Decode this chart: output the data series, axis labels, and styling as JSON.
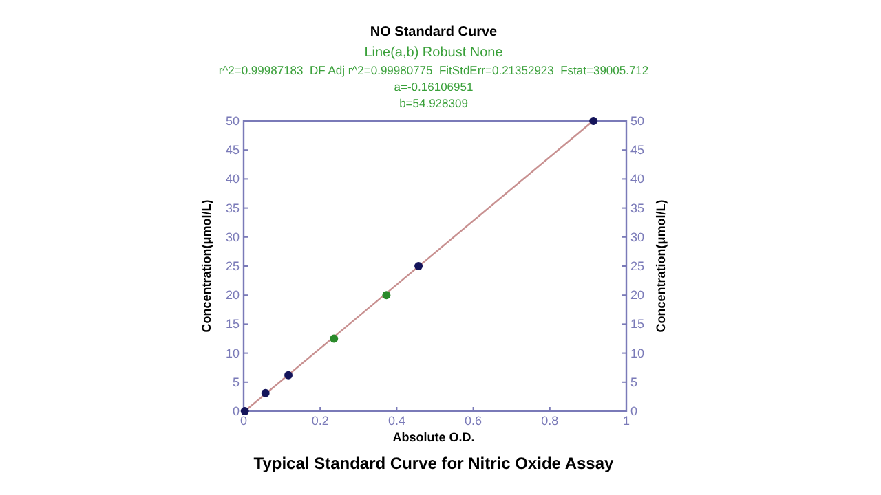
{
  "chart_data": {
    "type": "scatter",
    "title": "NO Standard Curve",
    "subtitle": "Line(a,b) Robust None",
    "xlabel": "Absolute O.D.",
    "ylabel": "Concentration(μmol/L)",
    "y2label": "Concentration(μmol/L)",
    "annotations": [
      "r^2=0.99987183  DF Adj r^2=0.99980775  FitStdErr=0.21352923  Fstat=39005.712",
      "a=-0.16106951",
      "b=54.928309",
      "Typical Standard Curve for Nitric Oxide Assay"
    ],
    "xlim": [
      0,
      1
    ],
    "xticks": [
      0,
      0.2,
      0.4,
      0.6,
      0.8,
      1
    ],
    "ylim": [
      0,
      50
    ],
    "yticks": [
      0,
      5,
      10,
      15,
      20,
      25,
      30,
      35,
      40,
      45,
      50
    ],
    "y2lim": [
      0,
      50
    ],
    "y2ticks": [
      0,
      5,
      10,
      15,
      20,
      25,
      30,
      35,
      40,
      45,
      50
    ],
    "marker": "circle",
    "series": [
      {
        "type": "line",
        "marker": "none",
        "color": "#c89090",
        "x": [
          0.003,
          0.913
        ],
        "values": [
          0,
          50
        ]
      },
      {
        "color": "#14145a",
        "x": [
          0.003,
          0.057,
          0.117,
          0.457,
          0.914
        ],
        "values": [
          0,
          3.1,
          6.2,
          25,
          50
        ]
      },
      {
        "color": "#2a8a2a",
        "x": [
          0.236,
          0.373
        ],
        "values": [
          12.5,
          20
        ]
      }
    ]
  }
}
